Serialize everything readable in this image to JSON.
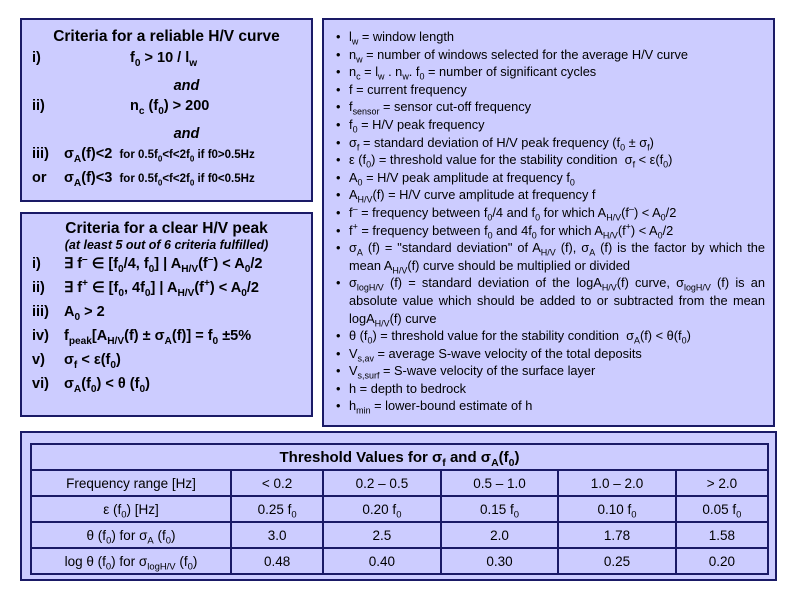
{
  "reliable": {
    "title": "Criteria for a reliable H/V curve",
    "i_label": "i)",
    "ii_label": "ii)",
    "iii_label": "iii)",
    "or_label": "or",
    "and": "and",
    "cond_a": "for 0.5f0<f<2f0 if f0>0.5Hz",
    "cond_b": "for 0.5f0<f<2f0 if f0<0.5Hz"
  },
  "clear": {
    "title": "Criteria for a clear H/V peak",
    "subtitle": "(at least 5 out of 6 criteria fulfilled)",
    "labels": [
      "i)",
      "ii)",
      "iii)",
      "iv)",
      "v)",
      "vi)"
    ]
  },
  "definitions": {
    "items": [
      "lw = window length",
      "nw = number of windows selected for the average H/V curve",
      "nc = lw . nw. f0 = number of significant cycles",
      "f = current frequency",
      "fsensor = sensor cut-off frequency",
      "f0 = H/V peak frequency",
      "σf = standard deviation of H/V peak frequency (f0 ± σf)",
      "ε (f0) = threshold value for the stability condition σf < ε(f0)",
      "A0 = H/V peak amplitude at frequency f0",
      "AH/V(f) = H/V curve amplitude at frequency f",
      "f– = frequency between f0/4 and f0 for which AH/V(f–) < A0/2",
      "f+ = frequency between f0 and 4f0 for which AH/V(f+) < A0/2",
      "σA (f) = \"standard deviation\" of AH/V (f), σA (f) is the factor by which the mean AH/V(f) curve should be multiplied or divided",
      "σlogH/V (f) = standard deviation of the logAH/V(f) curve, σlogH/V (f) is an absolute value which should be added to or subtracted from the mean logAH/V(f) curve",
      "θ (f0) = threshold value for the stability condition σA(f) < θ(f0)",
      "Vs,av = average S-wave velocity of the total deposits",
      "Vs,surf = S-wave velocity of the surface layer",
      "h = depth to bedrock",
      "hmin = lower-bound estimate of h"
    ]
  },
  "threshold": {
    "title": "Threshold Values for σf and σA(f0)",
    "header": [
      "Frequency range [Hz]",
      "< 0.2",
      "0.2 – 0.5",
      "0.5 – 1.0",
      "1.0 – 2.0",
      "> 2.0"
    ],
    "row_labels": [
      "ε (f0) [Hz]",
      "θ (f0) for σA (f0)",
      "log θ (f0) for σlogH/V (f0)"
    ],
    "eps": [
      "0.25 f0",
      "0.20 f0",
      "0.15 f0",
      "0.10 f0",
      "0.05 f0"
    ],
    "theta": [
      "3.0",
      "2.5",
      "2.0",
      "1.78",
      "1.58"
    ],
    "logtheta": [
      "0.48",
      "0.40",
      "0.30",
      "0.25",
      "0.20"
    ]
  }
}
